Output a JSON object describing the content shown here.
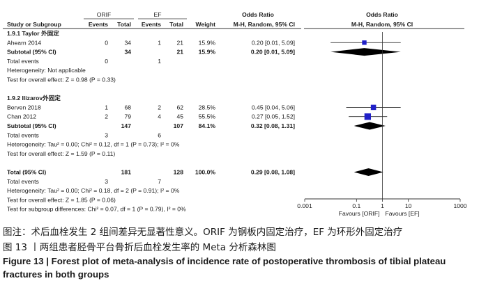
{
  "table": {
    "group1_label": "ORIF",
    "group2_label": "EF",
    "header_or_left": "Odds Ratio",
    "header_or_right": "Odds Ratio",
    "col_study": "Study or Subgroup",
    "col_events1": "Events",
    "col_total1": "Total",
    "col_events2": "Events",
    "col_total2": "Total",
    "col_weight": "Weight",
    "col_method_left": "M-H, Random, 95% CI",
    "col_method_right": "M-H, Random, 95% CI"
  },
  "rows": [
    {
      "kind": "header",
      "text": "1.9.1 Taylor 外固定"
    },
    {
      "kind": "study",
      "name": "Ahearn  2014",
      "e1": "0",
      "t1": "34",
      "e2": "1",
      "t2": "21",
      "w": "15.9%",
      "ci": "0.20 [0.01, 5.09]"
    },
    {
      "kind": "subtotal",
      "name": "Subtotal (95% CI)",
      "t1": "34",
      "t2": "21",
      "w": "15.9%",
      "ci": "0.20 [0.01, 5.09]"
    },
    {
      "kind": "events",
      "name": "Total events",
      "e1": "0",
      "e2": "1"
    },
    {
      "kind": "note",
      "text": "Heterogeneity: Not applicable"
    },
    {
      "kind": "note",
      "text": "Test for overall effect: Z = 0.98 (P = 0.33)"
    },
    {
      "kind": "blank"
    },
    {
      "kind": "header",
      "text": "1.9.2 Ilizarov外固定"
    },
    {
      "kind": "study",
      "name": "Berven  2018",
      "e1": "1",
      "t1": "68",
      "e2": "2",
      "t2": "62",
      "w": "28.5%",
      "ci": "0.45 [0.04, 5.06]"
    },
    {
      "kind": "study",
      "name": "Chan  2012",
      "e1": "2",
      "t1": "79",
      "e2": "4",
      "t2": "45",
      "w": "55.5%",
      "ci": "0.27 [0.05, 1.52]"
    },
    {
      "kind": "subtotal",
      "name": "Subtotal (95% CI)",
      "t1": "147",
      "t2": "107",
      "w": "84.1%",
      "ci": "0.32 [0.08, 1.31]"
    },
    {
      "kind": "events",
      "name": "Total events",
      "e1": "3",
      "e2": "6"
    },
    {
      "kind": "note",
      "text": "Heterogeneity: Tau² = 0.00; Chi² = 0.12, df = 1 (P = 0.73); I² = 0%"
    },
    {
      "kind": "note",
      "text": "Test for overall effect: Z = 1.59 (P = 0.11)"
    },
    {
      "kind": "blank"
    },
    {
      "kind": "total",
      "name": "Total (95% CI)",
      "t1": "181",
      "t2": "128",
      "w": "100.0%",
      "ci": "0.29 [0.08, 1.08]"
    },
    {
      "kind": "events",
      "name": "Total events",
      "e1": "3",
      "e2": "7"
    },
    {
      "kind": "note",
      "text": "Heterogeneity: Tau² = 0.00; Chi² = 0.18, df = 2 (P = 0.91); I² = 0%"
    },
    {
      "kind": "note",
      "text": "Test for overall effect: Z = 1.85 (P = 0.06)"
    },
    {
      "kind": "note",
      "text": "Test for subgroup differences: Chi² = 0.07, df = 1 (P = 0.79), I² = 0%"
    }
  ],
  "chart_data": {
    "type": "scatter",
    "x_scale": "log",
    "xlim": [
      0.001,
      1000
    ],
    "x_ticks": [
      "0.001",
      "0.1",
      "1",
      "10",
      "1000"
    ],
    "x_tick_values": [
      0.001,
      0.1,
      1,
      10,
      1000
    ],
    "favours_left": "Favours [ORIF]",
    "favours_right": "Favours [EF]",
    "studies": [
      {
        "name": "Ahearn  2014",
        "or": 0.2,
        "lo": 0.01,
        "hi": 5.09,
        "weight": 15.9
      },
      {
        "name": "Berven  2018",
        "or": 0.45,
        "lo": 0.04,
        "hi": 5.06,
        "weight": 28.5
      },
      {
        "name": "Chan  2012",
        "or": 0.27,
        "lo": 0.05,
        "hi": 1.52,
        "weight": 55.5
      }
    ],
    "pooled": [
      {
        "name": "Subtotal (95% CI)",
        "or": 0.2,
        "lo": 0.01,
        "hi": 5.09
      },
      {
        "name": "Subtotal (95% CI)",
        "or": 0.32,
        "lo": 0.08,
        "hi": 1.31
      },
      {
        "name": "Total (95% CI)",
        "or": 0.29,
        "lo": 0.08,
        "hi": 1.08
      }
    ],
    "colors": {
      "study_marker": "#2020c8",
      "diamond": "#000000"
    }
  },
  "caption": {
    "note_cn": "图注：术后血栓发生 2 组间差异无显著性意义。ORIF 为钢板内固定治疗，EF 为环形外固定治疗",
    "title_cn": "图 13 丨两组患者胫骨平台骨折后血栓发生率的 Meta 分析森林图",
    "title_en": "Figure 13 | Forest plot of meta-analysis of incidence rate of postoperative thrombosis of tibial plateau fractures in both groups"
  }
}
